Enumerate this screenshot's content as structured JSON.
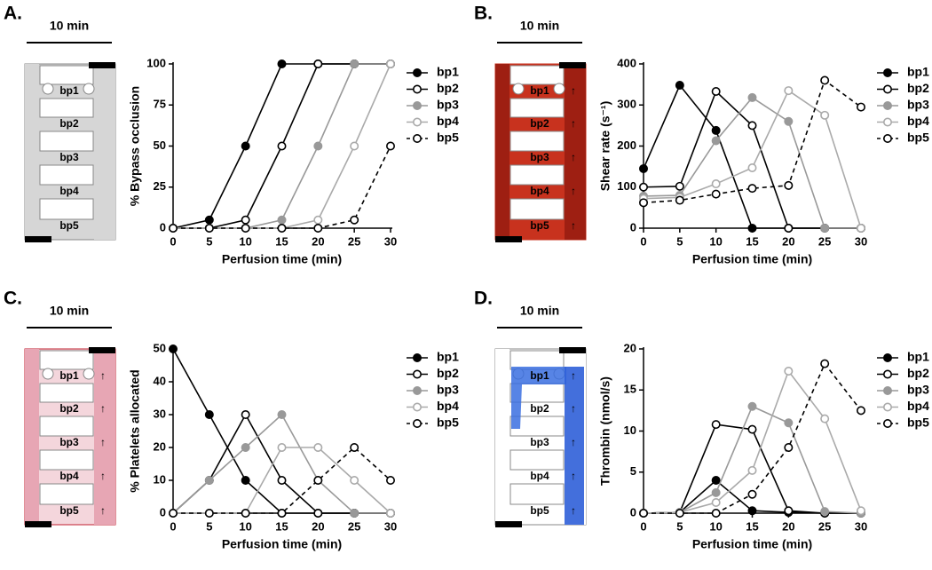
{
  "chart_data": [
    {
      "type": "line",
      "panel": "A.",
      "scale_label": "10 min",
      "diagram_labels": [
        "bp1",
        "bp2",
        "bp3",
        "bp4",
        "bp5"
      ],
      "xlabel": "Perfusion time (min)",
      "ylabel": "% Bypass occlusion",
      "x": [
        0,
        5,
        10,
        15,
        20,
        25,
        30
      ],
      "xlim": [
        0,
        30
      ],
      "xticks": [
        0,
        5,
        10,
        15,
        20,
        25,
        30
      ],
      "ylim": [
        0,
        100
      ],
      "yticks": [
        0,
        25,
        50,
        75,
        100
      ],
      "series": [
        {
          "name": "bp1",
          "color": "#000000",
          "marker": "filled",
          "linestyle": "solid",
          "values": [
            0,
            5,
            50,
            100,
            100,
            100,
            100
          ]
        },
        {
          "name": "bp2",
          "color": "#000000",
          "marker": "open",
          "linestyle": "solid",
          "values": [
            0,
            0,
            5,
            50,
            100,
            100,
            100
          ]
        },
        {
          "name": "bp3",
          "color": "#999999",
          "marker": "filled",
          "linestyle": "solid",
          "values": [
            0,
            0,
            0,
            5,
            50,
            100,
            100
          ]
        },
        {
          "name": "bp4",
          "color": "#aaaaaa",
          "marker": "open",
          "linestyle": "solid",
          "values": [
            0,
            0,
            0,
            0,
            5,
            50,
            100
          ]
        },
        {
          "name": "bp5",
          "color": "#000000",
          "marker": "open",
          "linestyle": "dashed",
          "values": [
            0,
            0,
            0,
            0,
            0,
            5,
            50
          ]
        }
      ]
    },
    {
      "type": "line",
      "panel": "B.",
      "scale_label": "10 min",
      "diagram_labels": [
        "bp1",
        "bp2",
        "bp3",
        "bp4",
        "bp5"
      ],
      "xlabel": "Perfusion time (min)",
      "ylabel": "Shear rate (s⁻¹)",
      "x": [
        0,
        5,
        10,
        15,
        20,
        25,
        30
      ],
      "xlim": [
        0,
        30
      ],
      "xticks": [
        0,
        5,
        10,
        15,
        20,
        25,
        30
      ],
      "ylim": [
        0,
        400
      ],
      "yticks": [
        0,
        100,
        200,
        300,
        400
      ],
      "series": [
        {
          "name": "bp1",
          "color": "#000000",
          "marker": "filled",
          "linestyle": "solid",
          "values": [
            145,
            348,
            238,
            0,
            0,
            0,
            0
          ]
        },
        {
          "name": "bp2",
          "color": "#000000",
          "marker": "open",
          "linestyle": "solid",
          "values": [
            100,
            102,
            333,
            250,
            0,
            0,
            0
          ]
        },
        {
          "name": "bp3",
          "color": "#999999",
          "marker": "filled",
          "linestyle": "solid",
          "values": [
            78,
            80,
            213,
            318,
            260,
            0,
            0
          ]
        },
        {
          "name": "bp4",
          "color": "#aaaaaa",
          "marker": "open",
          "linestyle": "solid",
          "values": [
            72,
            75,
            108,
            147,
            335,
            275,
            0
          ]
        },
        {
          "name": "bp5",
          "color": "#000000",
          "marker": "open",
          "linestyle": "dashed",
          "values": [
            62,
            68,
            83,
            97,
            104,
            360,
            295
          ]
        }
      ]
    },
    {
      "type": "line",
      "panel": "C.",
      "scale_label": "10 min",
      "diagram_labels": [
        "bp1",
        "bp2",
        "bp3",
        "bp4",
        "bp5"
      ],
      "xlabel": "Perfusion time (min)",
      "ylabel": "% Platelets allocated",
      "x": [
        0,
        5,
        10,
        15,
        20,
        25,
        30
      ],
      "xlim": [
        0,
        30
      ],
      "xticks": [
        0,
        5,
        10,
        15,
        20,
        25,
        30
      ],
      "ylim": [
        0,
        50
      ],
      "yticks": [
        0,
        10,
        20,
        30,
        40,
        50
      ],
      "series": [
        {
          "name": "bp1",
          "color": "#000000",
          "marker": "filled",
          "linestyle": "solid",
          "values": [
            50,
            30,
            10,
            0,
            0,
            0,
            0
          ]
        },
        {
          "name": "bp2",
          "color": "#000000",
          "marker": "open",
          "linestyle": "solid",
          "values": [
            0,
            10,
            30,
            10,
            0,
            0,
            0
          ]
        },
        {
          "name": "bp3",
          "color": "#999999",
          "marker": "filled",
          "linestyle": "solid",
          "values": [
            0,
            10,
            20,
            30,
            10,
            0,
            0
          ]
        },
        {
          "name": "bp4",
          "color": "#aaaaaa",
          "marker": "open",
          "linestyle": "solid",
          "values": [
            0,
            0,
            0,
            20,
            20,
            10,
            0
          ]
        },
        {
          "name": "bp5",
          "color": "#000000",
          "marker": "open",
          "linestyle": "dashed",
          "values": [
            0,
            0,
            0,
            0,
            10,
            20,
            10
          ]
        }
      ]
    },
    {
      "type": "line",
      "panel": "D.",
      "scale_label": "10 min",
      "diagram_labels": [
        "bp1",
        "bp2",
        "bp3",
        "bp4",
        "bp5"
      ],
      "xlabel": "Perfusion time (min)",
      "ylabel": "Thrombin (nmol/s)",
      "x": [
        0,
        5,
        10,
        15,
        20,
        25,
        30
      ],
      "xlim": [
        0,
        30
      ],
      "xticks": [
        0,
        5,
        10,
        15,
        20,
        25,
        30
      ],
      "ylim": [
        0,
        20
      ],
      "yticks": [
        0,
        5,
        10,
        15,
        20
      ],
      "series": [
        {
          "name": "bp1",
          "color": "#000000",
          "marker": "filled",
          "linestyle": "solid",
          "values": [
            0,
            0.1,
            4,
            0.3,
            0.1,
            0,
            0
          ]
        },
        {
          "name": "bp2",
          "color": "#000000",
          "marker": "open",
          "linestyle": "solid",
          "values": [
            0,
            0.1,
            10.8,
            10.2,
            0.3,
            0,
            0
          ]
        },
        {
          "name": "bp3",
          "color": "#999999",
          "marker": "filled",
          "linestyle": "solid",
          "values": [
            0,
            0.1,
            2.5,
            13,
            11,
            0.2,
            0
          ]
        },
        {
          "name": "bp4",
          "color": "#aaaaaa",
          "marker": "open",
          "linestyle": "solid",
          "values": [
            0,
            0.1,
            1.3,
            5.2,
            17.3,
            11.5,
            0.3
          ]
        },
        {
          "name": "bp5",
          "color": "#000000",
          "marker": "open",
          "linestyle": "dashed",
          "values": [
            0,
            0,
            0,
            2.3,
            8,
            18.2,
            12.5
          ]
        }
      ]
    }
  ]
}
